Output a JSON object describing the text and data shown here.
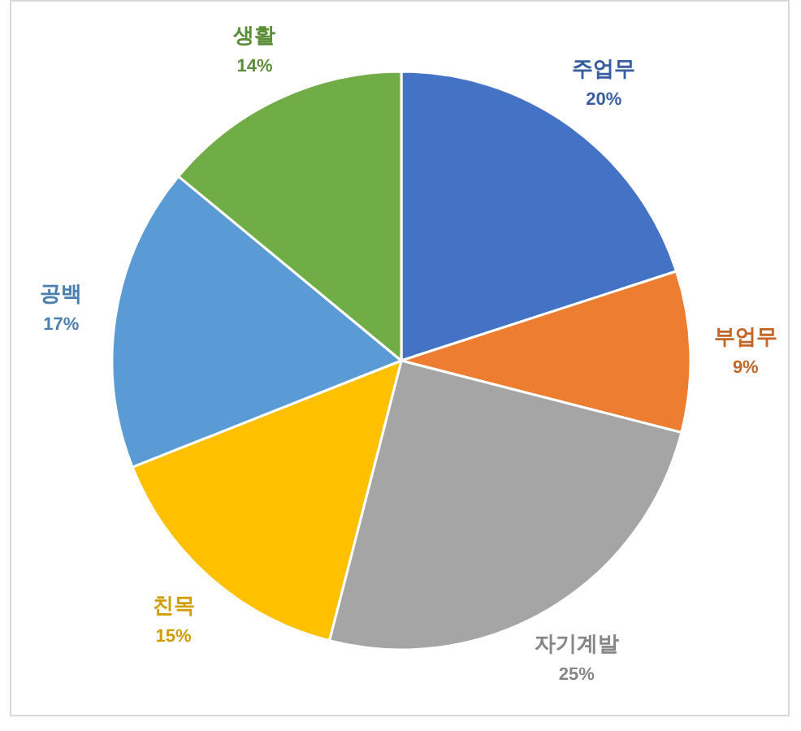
{
  "chart_data": {
    "type": "pie",
    "categories": [
      "주업무",
      "부업무",
      "자기계발",
      "친목",
      "공백",
      "생활"
    ],
    "values": [
      20,
      9,
      25,
      15,
      17,
      14
    ],
    "colors": [
      "#4472c4",
      "#ed7d31",
      "#a5a5a5",
      "#ffc000",
      "#5b9bd5",
      "#70ad47"
    ],
    "value_labels": [
      "20%",
      "9%",
      "25%",
      "15%",
      "17%",
      "14%"
    ]
  }
}
